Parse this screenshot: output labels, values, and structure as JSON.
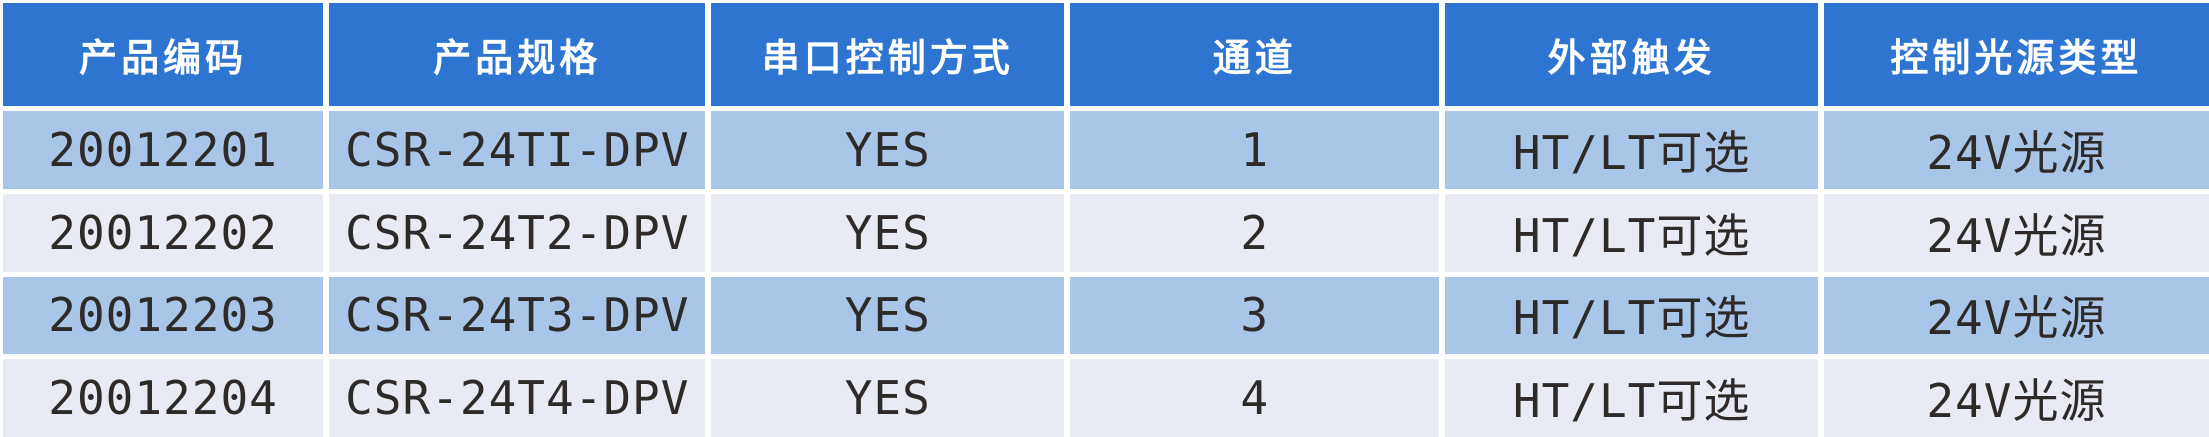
{
  "colors": {
    "header_bg": "#2E75D1",
    "header_text": "#FFFFFF",
    "band_row_bg": "#A9C5E8",
    "light_row_bg": "#E9EBF4",
    "body_text": "#2E2A28",
    "separator": "#FFFFFF"
  },
  "table": {
    "columns": [
      {
        "label": "产品编码"
      },
      {
        "label": "产品规格"
      },
      {
        "label": "串口控制方式"
      },
      {
        "label": "通道"
      },
      {
        "label": "外部触发"
      },
      {
        "label": "控制光源类型"
      }
    ],
    "rows": [
      [
        "20012201",
        "CSR-24TI-DPV",
        "YES",
        "1",
        "HT/LT可选",
        "24V光源"
      ],
      [
        "20012202",
        "CSR-24T2-DPV",
        "YES",
        "2",
        "HT/LT可选",
        "24V光源"
      ],
      [
        "20012203",
        "CSR-24T3-DPV",
        "YES",
        "3",
        "HT/LT可选",
        "24V光源"
      ],
      [
        "20012204",
        "CSR-24T4-DPV",
        "YES",
        "4",
        "HT/LT可选",
        "24V光源"
      ]
    ]
  }
}
